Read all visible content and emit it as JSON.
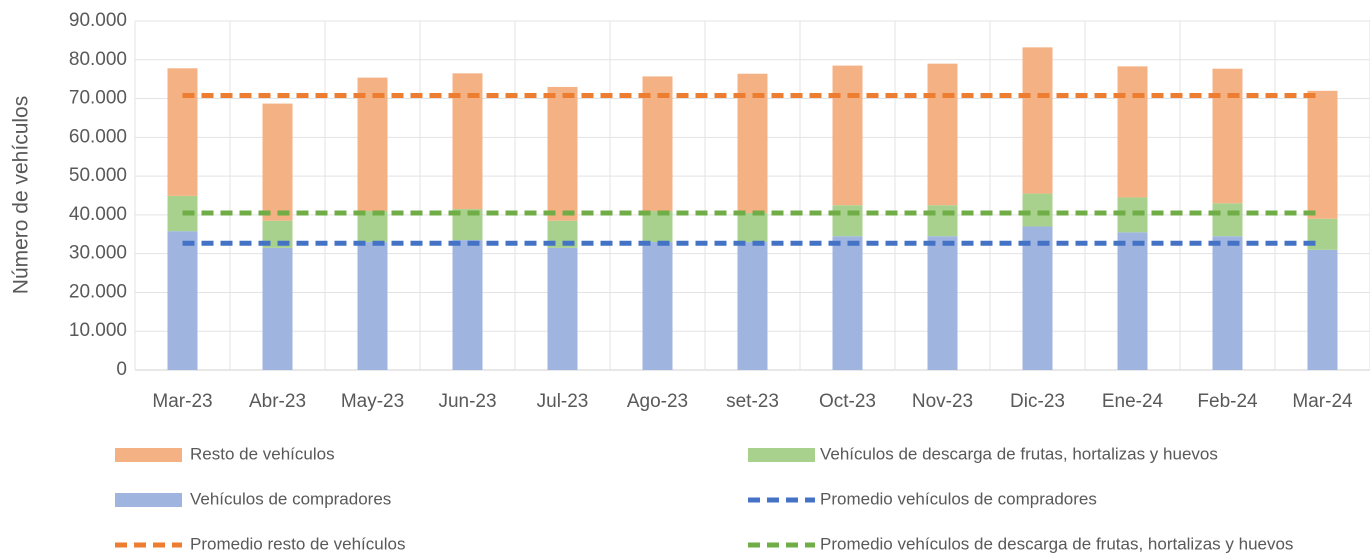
{
  "chart_data": {
    "type": "bar",
    "stacked": true,
    "y_label": "Número de vehículos",
    "categories": [
      "Mar-23",
      "Abr-23",
      "May-23",
      "Jun-23",
      "Jul-23",
      "Ago-23",
      "set-23",
      "Oct-23",
      "Nov-23",
      "Dic-23",
      "Ene-24",
      "Feb-24",
      "Mar-24"
    ],
    "series": [
      {
        "name": "Resto de vehículos",
        "type": "bar",
        "color": "#f4b183",
        "values": [
          32900,
          30200,
          34400,
          35000,
          34500,
          34700,
          35900,
          36000,
          36500,
          37700,
          33800,
          34700,
          33000
        ]
      },
      {
        "name": "Vehículos de descarga de frutas, hortalizas y huevos",
        "type": "bar",
        "color": "#a9d18e",
        "values": [
          9100,
          7000,
          8000,
          8000,
          7000,
          8000,
          7500,
          8000,
          8000,
          8500,
          9000,
          8500,
          8000
        ]
      },
      {
        "name": "Vehículos de compradores",
        "type": "bar",
        "color": "#9fb5e0",
        "values": [
          35800,
          31500,
          33000,
          33500,
          31500,
          33000,
          33000,
          34500,
          34500,
          37000,
          35500,
          34500,
          31000
        ]
      },
      {
        "name": "Promedio vehículos de compradores",
        "type": "line",
        "dashed": true,
        "color": "#4472c4",
        "values": [
          32700,
          32700,
          32700,
          32700,
          32700,
          32700,
          32700,
          32700,
          32700,
          32700,
          32700,
          32700,
          32700
        ]
      },
      {
        "name": "Promedio resto de vehículos",
        "type": "line",
        "dashed": true,
        "color": "#ed7d31",
        "values": [
          70800,
          70800,
          70800,
          70800,
          70800,
          70800,
          70800,
          70800,
          70800,
          70800,
          70800,
          70800,
          70800
        ]
      },
      {
        "name": "Promedio vehículos de descarga de frutas, hortalizas y huevos",
        "type": "line",
        "dashed": true,
        "color": "#70ad47",
        "values": [
          40500,
          40500,
          40500,
          40500,
          40500,
          40500,
          40500,
          40500,
          40500,
          40500,
          40500,
          40500,
          40500
        ]
      }
    ],
    "ylim": [
      0,
      90000
    ],
    "yticks": [
      0,
      {
        "value": 10000,
        "label": "10.000"
      },
      {
        "value": 20000,
        "label": "20.000"
      },
      {
        "value": 30000,
        "label": "30.000"
      },
      {
        "value": 40000,
        "label": "40.000"
      },
      {
        "value": 50000,
        "label": "50.000"
      },
      {
        "value": 60000,
        "label": "60.000"
      },
      {
        "value": 70000,
        "label": "70.000"
      },
      {
        "value": 80000,
        "label": "80.000"
      },
      {
        "value": 90000,
        "label": "90.000"
      }
    ],
    "grid": true,
    "legend": "bottom"
  }
}
